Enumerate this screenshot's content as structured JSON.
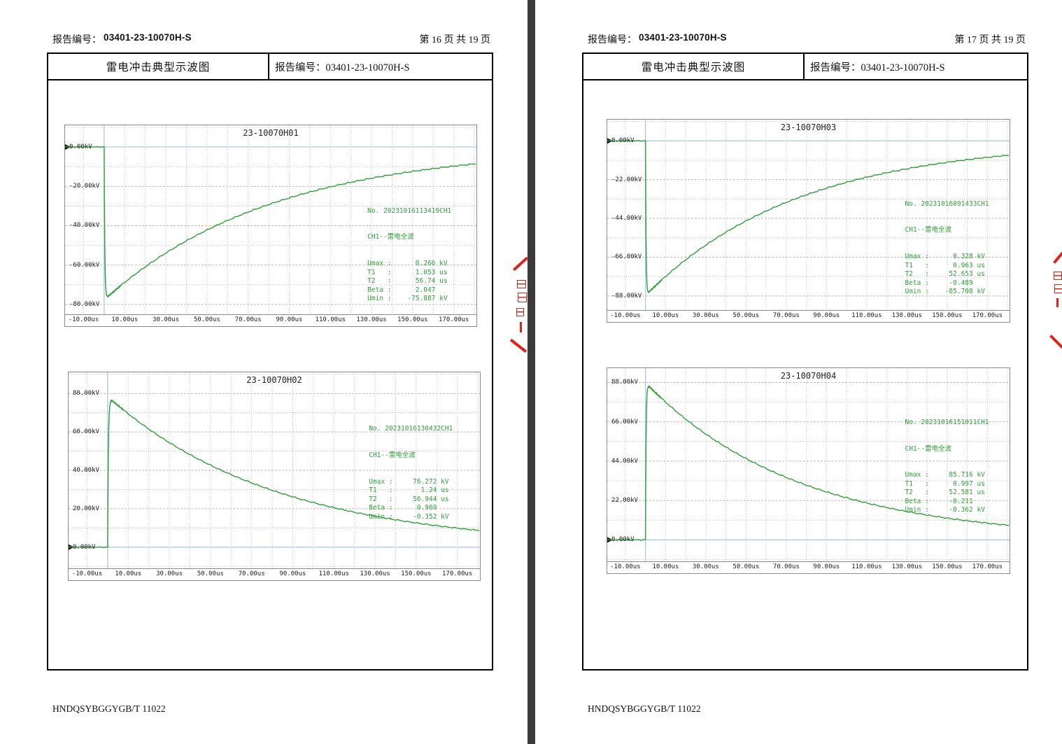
{
  "document": {
    "footer": "HNDQSYBGGYGB/T 11022",
    "pages": [
      {
        "header_label": "报告编号：",
        "report_no": "03401-23-10070H-S",
        "page_indicator": "第 16 页 共 19 页",
        "sheet_title": "雷电冲击典型示波图",
        "sheet_report_no": "报告编号：03401-23-10070H-S"
      },
      {
        "header_label": "报告编号：",
        "report_no": "03401-23-10070H-S",
        "page_indicator": "第 17 页 共 19 页",
        "sheet_title": "雷电冲击典型示波图",
        "sheet_report_no": "报告编号：03401-23-10070H-S"
      }
    ]
  },
  "colors": {
    "curve_green": "#2f9e3a",
    "crosshair_blue": "#a6c8e4",
    "grid_gray": "#c3c3c3",
    "seal_red": "#d9251c"
  },
  "chart_data": [
    {
      "type": "line",
      "title": "23-10070H01",
      "x_ticks": [
        "-10.00us",
        "10.00us",
        "30.00us",
        "50.00us",
        "70.00us",
        "90.00us",
        "110.00us",
        "130.00us",
        "150.00us",
        "170.00us"
      ],
      "x_tick_values": [
        -10,
        10,
        30,
        50,
        70,
        90,
        110,
        130,
        150,
        170
      ],
      "x_range_us": [
        -19,
        181
      ],
      "y_ticks": [
        0,
        -20,
        -40,
        -60,
        -80
      ],
      "y_tick_labels": [
        "0.00kV",
        "-20.00kV",
        "-40.00kV",
        "-60.00kV",
        "-80.00kV"
      ],
      "y_range_kv": [
        11,
        -85
      ],
      "series": [
        {
          "name": "CH1",
          "waveform": "lightning-full-wave",
          "peak_kv": -75.887,
          "front_us": 1.053,
          "half_time_us": 56.74
        }
      ],
      "annotation": {
        "no": "No. 20231016113419CH1",
        "channel": "CH1--雷电全波",
        "rows": [
          {
            "label": "Umax",
            "value": "0.266",
            "unit": "kV"
          },
          {
            "label": "T1",
            "value": "1.053",
            "unit": "us"
          },
          {
            "label": "T2",
            "value": "56.74",
            "unit": "us"
          },
          {
            "label": "Beta",
            "value": "2.047",
            "unit": ""
          },
          {
            "label": "Umin",
            "value": "-75.887",
            "unit": "kV"
          }
        ]
      },
      "annotation_pos_pct": {
        "left": 73.5,
        "top": 34
      }
    },
    {
      "type": "line",
      "title": "23-10070H02",
      "x_ticks": [
        "-10.00us",
        "10.00us",
        "30.00us",
        "50.00us",
        "70.00us",
        "90.00us",
        "110.00us",
        "130.00us",
        "150.00us",
        "170.00us"
      ],
      "x_tick_values": [
        -10,
        10,
        30,
        50,
        70,
        90,
        110,
        130,
        150,
        170
      ],
      "x_range_us": [
        -19,
        181
      ],
      "y_ticks": [
        80,
        60,
        40,
        20,
        0
      ],
      "y_tick_labels": [
        "80.00kV",
        "60.00kV",
        "40.00kV",
        "20.00kV",
        "0.00kV"
      ],
      "y_range_kv": [
        91,
        -11
      ],
      "series": [
        {
          "name": "CH1",
          "waveform": "lightning-full-wave",
          "peak_kv": 76.272,
          "front_us": 1.24,
          "half_time_us": 56.944
        }
      ],
      "annotation": {
        "no": "No. 20231016130432CH1",
        "channel": "CH1--雷电全波",
        "rows": [
          {
            "label": "Umax",
            "value": "76.272",
            "unit": "kV"
          },
          {
            "label": "T1",
            "value": "1.24",
            "unit": "us"
          },
          {
            "label": "T2",
            "value": "56.944",
            "unit": "us"
          },
          {
            "label": "Beta",
            "value": "0.969",
            "unit": ""
          },
          {
            "label": "Umin",
            "value": "-0.352",
            "unit": "kV"
          }
        ]
      },
      "annotation_pos_pct": {
        "left": 73,
        "top": 18
      }
    },
    {
      "type": "line",
      "title": "23-10070H03",
      "x_ticks": [
        "-10.00us",
        "10.00us",
        "30.00us",
        "50.00us",
        "70.00us",
        "90.00us",
        "110.00us",
        "130.00us",
        "150.00us",
        "170.00us"
      ],
      "x_tick_values": [
        -10,
        10,
        30,
        50,
        70,
        90,
        110,
        130,
        150,
        170
      ],
      "x_range_us": [
        -19,
        181
      ],
      "y_ticks": [
        0,
        -22,
        -44,
        -66,
        -88
      ],
      "y_tick_labels": [
        "0.00kV",
        "-22.00kV",
        "-44.00kV",
        "-66.00kV",
        "-88.00kV"
      ],
      "y_range_kv": [
        12,
        -96
      ],
      "series": [
        {
          "name": "CH1",
          "waveform": "lightning-full-wave",
          "peak_kv": -85.708,
          "front_us": 0.963,
          "half_time_us": 52.653
        }
      ],
      "annotation": {
        "no": "No. 20231016091433CH1",
        "channel": "CH1--雷电全波",
        "rows": [
          {
            "label": "Umax",
            "value": "0.328",
            "unit": "kV"
          },
          {
            "label": "T1",
            "value": "0.963",
            "unit": "us"
          },
          {
            "label": "T2",
            "value": "52.653",
            "unit": "us"
          },
          {
            "label": "Beta",
            "value": "-0.489",
            "unit": ""
          },
          {
            "label": "Umin",
            "value": "-85.708",
            "unit": "kV"
          }
        ]
      },
      "annotation_pos_pct": {
        "left": 74,
        "top": 33
      }
    },
    {
      "type": "line",
      "title": "23-10070H04",
      "x_ticks": [
        "-10.00us",
        "10.00us",
        "30.00us",
        "50.00us",
        "70.00us",
        "90.00us",
        "110.00us",
        "130.00us",
        "150.00us",
        "170.00us"
      ],
      "x_tick_values": [
        -10,
        10,
        30,
        50,
        70,
        90,
        110,
        130,
        150,
        170
      ],
      "x_range_us": [
        -19,
        181
      ],
      "y_ticks": [
        88,
        66,
        44,
        22,
        0
      ],
      "y_tick_labels": [
        "88.00kV",
        "66.00kV",
        "44.00kV",
        "22.00kV",
        "0.00kV"
      ],
      "y_range_kv": [
        96,
        -12
      ],
      "series": [
        {
          "name": "CH1",
          "waveform": "lightning-full-wave",
          "peak_kv": 85.716,
          "front_us": 0.997,
          "half_time_us": 52.581
        }
      ],
      "annotation": {
        "no": "No. 20231016151011CH1",
        "channel": "CH1--雷电全波",
        "rows": [
          {
            "label": "Umax",
            "value": "85.716",
            "unit": "kV"
          },
          {
            "label": "T1",
            "value": "0.997",
            "unit": "us"
          },
          {
            "label": "T2",
            "value": "52.581",
            "unit": "us"
          },
          {
            "label": "Beta",
            "value": "-0.211",
            "unit": ""
          },
          {
            "label": "Umin",
            "value": "-0.362",
            "unit": "kV"
          }
        ]
      },
      "annotation_pos_pct": {
        "left": 74,
        "top": 17
      }
    }
  ]
}
